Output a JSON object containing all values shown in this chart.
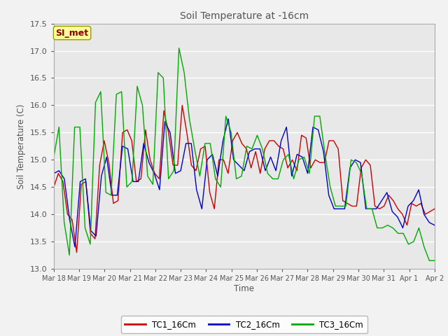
{
  "title": "Soil Temperature at -16cm",
  "ylabel": "Soil Temperature (C)",
  "xlabel": "Time",
  "ylim": [
    13.0,
    17.5
  ],
  "annotation": "SI_met",
  "plot_bg_color": "#e8e8e8",
  "fig_bg_color": "#f2f2f2",
  "grid_color": "#ffffff",
  "legend_labels": [
    "TC1_16Cm",
    "TC2_16Cm",
    "TC3_16Cm"
  ],
  "line_colors": [
    "#cc0000",
    "#0000cc",
    "#00aa00"
  ],
  "xtick_labels": [
    "Mar 18",
    "Mar 19",
    "Mar 20",
    "Mar 21",
    "Mar 22",
    "Mar 23",
    "Mar 24",
    "Mar 25",
    "Mar 26",
    "Mar 27",
    "Mar 28",
    "Mar 29",
    "Mar 30",
    "Mar 31",
    "Apr 1",
    "Apr 2"
  ],
  "tc1": [
    14.5,
    14.75,
    14.6,
    14.0,
    13.9,
    13.3,
    14.55,
    14.6,
    13.65,
    13.55,
    14.9,
    15.35,
    14.95,
    14.2,
    14.25,
    15.5,
    15.55,
    15.35,
    14.6,
    14.65,
    15.55,
    15.0,
    14.75,
    14.65,
    15.9,
    15.5,
    14.9,
    14.9,
    16.0,
    15.5,
    14.9,
    14.8,
    15.2,
    15.25,
    14.4,
    14.1,
    15.0,
    15.0,
    14.75,
    15.35,
    15.5,
    15.3,
    15.2,
    14.85,
    15.15,
    14.75,
    15.2,
    15.35,
    15.35,
    15.25,
    15.2,
    14.85,
    15.0,
    14.8,
    15.45,
    15.4,
    14.85,
    15.0,
    14.95,
    14.95,
    15.35,
    15.35,
    15.2,
    14.25,
    14.2,
    14.15,
    14.15,
    14.85,
    15.0,
    14.9,
    14.15,
    14.1,
    14.15,
    14.35,
    14.25,
    14.1,
    14.0,
    13.8,
    14.2,
    14.15,
    14.2,
    14.0,
    14.05,
    14.1
  ],
  "tc2": [
    14.75,
    14.8,
    14.65,
    13.9,
    13.4,
    14.6,
    14.65,
    13.7,
    13.6,
    14.7,
    15.05,
    14.35,
    14.35,
    15.25,
    15.2,
    14.6,
    14.6,
    15.3,
    14.95,
    14.75,
    14.45,
    15.7,
    15.5,
    14.75,
    14.8,
    15.3,
    15.3,
    14.45,
    14.1,
    15.0,
    15.1,
    14.7,
    15.35,
    15.75,
    15.0,
    14.9,
    14.8,
    15.15,
    15.2,
    15.2,
    14.8,
    15.05,
    14.8,
    15.35,
    15.6,
    14.7,
    15.1,
    15.05,
    14.75,
    15.6,
    15.55,
    15.15,
    14.35,
    14.1,
    14.1,
    14.1,
    14.85,
    15.0,
    14.95,
    14.1,
    14.1,
    14.1,
    14.25,
    14.4,
    14.05,
    13.95,
    13.75,
    14.15,
    14.25,
    14.45,
    14.0,
    13.85,
    13.8
  ],
  "tc3": [
    15.05,
    15.6,
    13.85,
    13.25,
    15.6,
    15.6,
    13.75,
    13.45,
    16.05,
    16.25,
    14.4,
    14.35,
    16.2,
    16.25,
    14.5,
    14.6,
    16.35,
    16.0,
    14.7,
    14.55,
    16.6,
    16.5,
    14.65,
    14.8,
    17.05,
    16.6,
    15.75,
    15.2,
    14.7,
    15.3,
    15.3,
    14.65,
    14.5,
    15.8,
    15.5,
    14.65,
    14.7,
    15.25,
    15.2,
    15.45,
    15.2,
    14.75,
    14.65,
    14.65,
    15.0,
    15.1,
    14.65,
    15.0,
    15.05,
    14.75,
    15.8,
    15.8,
    15.1,
    14.5,
    14.15,
    14.15,
    14.15,
    15.0,
    14.95,
    14.75,
    14.1,
    14.1,
    13.75,
    13.75,
    13.8,
    13.75,
    13.65,
    13.65,
    13.45,
    13.5,
    13.75,
    13.4,
    13.15,
    13.15
  ]
}
